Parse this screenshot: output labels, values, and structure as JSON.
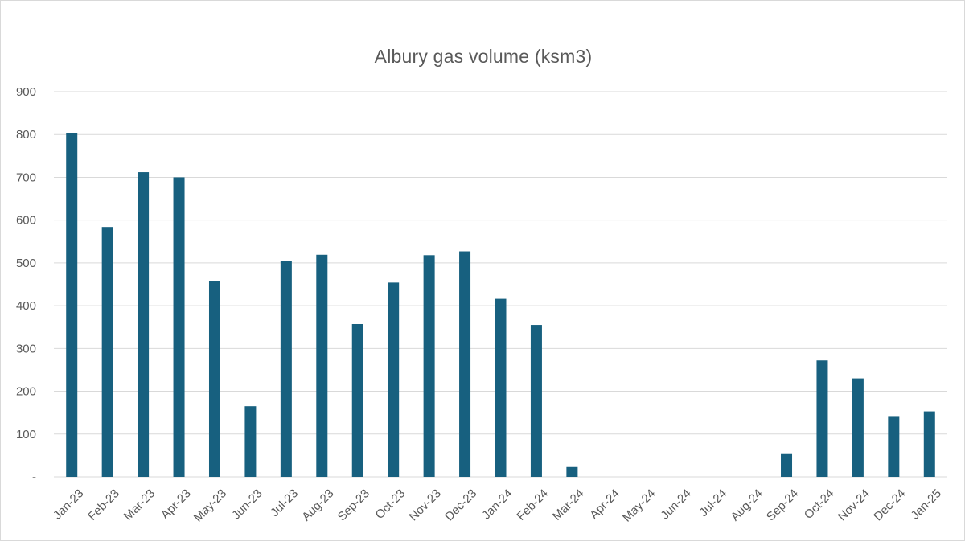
{
  "chart_data": {
    "type": "bar",
    "title": "Albury gas volume (ksm3)",
    "xlabel": "",
    "ylabel": "",
    "ylim": [
      0,
      900
    ],
    "yticks": [
      0,
      100,
      200,
      300,
      400,
      500,
      600,
      700,
      800,
      900
    ],
    "ytick_labels": [
      "-",
      "100",
      "200",
      "300",
      "400",
      "500",
      "600",
      "700",
      "800",
      "900"
    ],
    "grid": true,
    "legend": "none",
    "bar_color": "#17607f",
    "categories": [
      "Jan-23",
      "Feb-23",
      "Mar-23",
      "Apr-23",
      "May-23",
      "Jun-23",
      "Jul-23",
      "Aug-23",
      "Sep-23",
      "Oct-23",
      "Nov-23",
      "Dec-23",
      "Jan-24",
      "Feb-24",
      "Mar-24",
      "Apr-24",
      "May-24",
      "Jun-24",
      "Jul-24",
      "Aug-24",
      "Sep-24",
      "Oct-24",
      "Nov-24",
      "Dec-24",
      "Jan-25"
    ],
    "values": [
      804,
      584,
      712,
      700,
      458,
      165,
      505,
      519,
      357,
      454,
      518,
      527,
      416,
      355,
      23,
      0,
      0,
      0,
      0,
      0,
      55,
      272,
      230,
      142,
      153
    ]
  }
}
